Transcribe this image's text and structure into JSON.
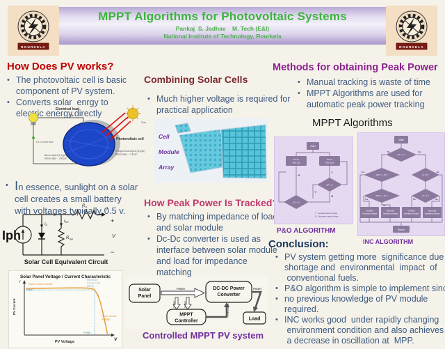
{
  "colors": {
    "title_green": "#3bb53b",
    "heading_red": "#c00000",
    "heading_maroon": "#7b282e",
    "heading_pink": "#c1386b",
    "heading_purple": "#8d2190",
    "conclusion_navy": "#17365d",
    "body_blue": "#3d5a80",
    "caption_purple": "#7030a0",
    "band_lavender": "#b9aad6",
    "logo_tan": "#f4dfc4",
    "flow_panel": "#e5d8f1",
    "flow_node": "#8b7a9e",
    "curve_orange": "#e5a33c",
    "mpp_blue": "#79b8cf"
  },
  "header": {
    "title": "MPPT Algorithms for Photovoltaic Systems",
    "author": "Pankaj  S. Jadhav    M. Tech (E&I)",
    "institute": "National Institute of Technology, Rourkela",
    "logo_banner": "ROURKELA"
  },
  "pv_section": {
    "heading": "How Does PV works?",
    "bullet1_lines": [
      "The photovoltaic cell is basic",
      "component of PV system."
    ],
    "bullet2_lines": [
      "Converts solar  enrgy to",
      "electric energy.directly"
    ],
    "bullet3_lines": [
      "In essence, sunlight on a solar",
      "cell creates a small battery",
      "with voltages typically 0.5 v."
    ],
    "diagram": {
      "electrical_load": "Electrical load",
      "neg": "(-)",
      "pos": "(+)",
      "dc_current": "DC current flow",
      "pv_cell": "Photovoltaic cell",
      "sun": "Sun",
      "p_layer_lines": [
        "Boron-doped (P-type)",
        "silicon layer ~ 300 μm"
      ],
      "n_layer_lines": [
        "Phosphorous-doped (N-type)",
        "silicon layer ~ 0.5 μm"
      ]
    },
    "circuit": {
      "iph": "Iph",
      "i_d_base": "I",
      "i_d_sub": "D",
      "i_sh_base": "I",
      "i_sh_sub": "SH",
      "r_sh_base": "R",
      "r_sh_sub": "SH",
      "r_s_base": "R",
      "r_s_sub": "S",
      "current": "I",
      "plus": "+",
      "volt": "V",
      "minus": "−",
      "caption": "Solar Cell Equivalent Circuit"
    }
  },
  "iv_chart": {
    "type": "line",
    "title": "Solar Panel Voltage / Current Characteristic",
    "xlabel": "PV Voltage",
    "ylabel": "PV Current",
    "x_axis_symbol": "V",
    "y_axis_symbol": "I",
    "ann_isc": "Short Circuit Current",
    "ann_mpp_lines": [
      "Maximum",
      "Power Point",
      "(MPP)"
    ],
    "ann_voc_lines": [
      "Open Circuit",
      "Voltage"
    ],
    "label_impp": "Imppt",
    "label_vmpp": "Vmppt",
    "curve": [
      [
        0,
        0.93
      ],
      [
        0.2,
        0.933
      ],
      [
        0.4,
        0.937
      ],
      [
        0.55,
        0.94
      ],
      [
        0.68,
        0.94
      ],
      [
        0.76,
        0.935
      ],
      [
        0.81,
        0.925
      ],
      [
        0.84,
        0.9
      ],
      [
        0.88,
        0.8
      ],
      [
        0.91,
        0.65
      ],
      [
        0.94,
        0.45
      ],
      [
        0.97,
        0.22
      ],
      [
        1,
        0
      ]
    ],
    "mpp": [
      0.84,
      0.9
    ]
  },
  "combining": {
    "heading": "Combining Solar Cells",
    "bullet1_lines": [
      "Much higher voltage is required for",
      "practical application"
    ],
    "img": {
      "cell": "Cell",
      "module": "Module",
      "array": "Array"
    }
  },
  "tracking": {
    "heading": "How Peak Power Is Tracked?",
    "bullet1_lines": [
      "By matching impedance of load",
      "and solar module"
    ],
    "bullet2_lines": [
      "Dc-Dc converter is used as",
      "interface between solar module",
      "and load for impedance",
      "matching"
    ],
    "caption": "Controlled MPPT PV system",
    "diagram": {
      "solar_l1": "Solar",
      "solar_l2": "Panel",
      "conv_l1": "DC-DC Power",
      "conv_l2": "Converter",
      "ctrl_l1": "MPPT",
      "ctrl_l2": "Controller",
      "load": "Load",
      "power1": "Power",
      "power2": "Power",
      "voltage": "Voltage",
      "current": "Current",
      "control": "Control signal"
    }
  },
  "methods": {
    "heading": "Methods for obtaining Peak Power",
    "bullet1": "Manual tracking is waste of time",
    "bullet2_lines": [
      "MPPT Algorithms are used for",
      "automatic peak power tracking"
    ],
    "subheading": "MPPT Algorithms",
    "pno_caption": "P&O  ALGORITHM",
    "inc_caption": "INC ALGORITHM"
  },
  "pno_flow": {
    "start": "Start",
    "box_left_l1": "Sense",
    "box_left_l2": "V(k), I(k)",
    "box_right_l1": "Sense",
    "box_right_l2": "V(k), I(k)",
    "diamond_right": "ΔP > 0",
    "diamond_left": "ΔV > 0",
    "yes": "Y",
    "no": "N",
    "legend_lines": [
      "Y : Increase panel voltage",
      "N : Decrease panel voltage"
    ]
  },
  "inc_flow": {
    "start": "Start",
    "d1": "dV = 0 ?",
    "d2": "dI/dV = −I/V ?",
    "d3": "dI = 0 ?",
    "d4": "dI/dV > −I/V ?",
    "d5": "dI > 0 ?",
    "yes": "Yes",
    "no": "No",
    "box1_l1": "Increase",
    "box1_l2": "Operating Voltage",
    "box2_l1": "Decrease",
    "box2_l2": "Operating Voltage",
    "box3_l1": "Increase",
    "box3_l2": "Operating Voltage",
    "box4_l1": "Decrease",
    "box4_l2": "Operating Voltage",
    "return": "Return"
  },
  "conclusion": {
    "heading": "Conclusion:",
    "bullet1_lines": [
      "PV system getting more  significance due to",
      "shortage and  environmental  impact  of",
      " conventional fuels."
    ],
    "bullet2_lines": [
      "P&O algorithm is simple to implement since"
    ],
    "bullet3_lines": [
      "no previous knowledge of PV module",
      "required."
    ],
    "bullet4_lines": [
      "INC works good  under rapidly changing",
      " environment condition and also achieves",
      " a decrease in oscillation at  MPP."
    ]
  }
}
